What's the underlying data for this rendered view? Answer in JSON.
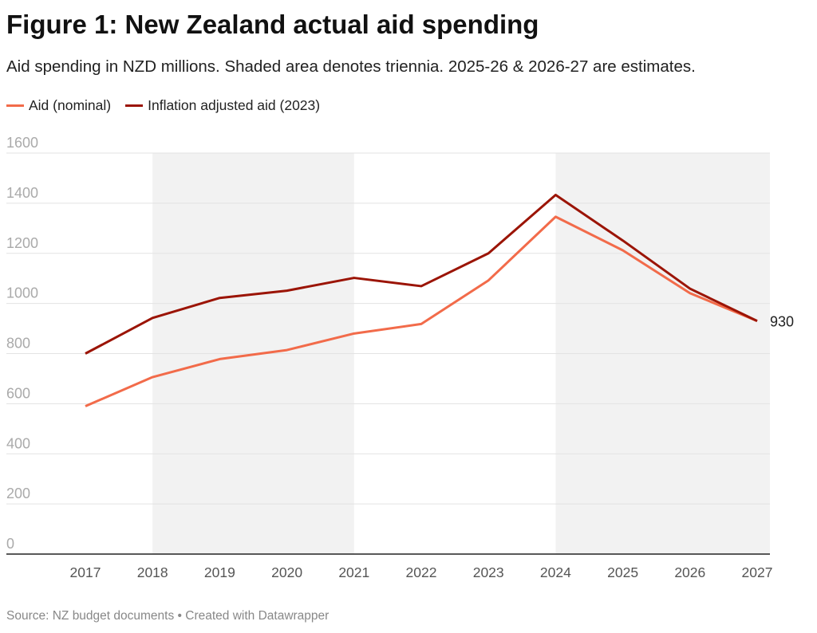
{
  "title": "Figure 1: New Zealand actual aid spending",
  "subtitle": "Aid spending in NZD millions. Shaded area denotes triennia. 2025-26 & 2026-27 are estimates.",
  "source": "Source: NZ budget documents • Created with Datawrapper",
  "chart_data": {
    "type": "line",
    "title": "Figure 1: New Zealand actual aid spending",
    "x": [
      2017,
      2018,
      2019,
      2020,
      2021,
      2022,
      2023,
      2024,
      2025,
      2026,
      2027
    ],
    "x_tick_labels": [
      "2017",
      "2018",
      "2019",
      "2020",
      "2021",
      "2022",
      "2023",
      "2024",
      "2025",
      "2026",
      "2027"
    ],
    "y_ticks": [
      "0",
      "200",
      "400",
      "600",
      "800",
      "1000",
      "1200",
      "1400",
      "1600"
    ],
    "ylim": [
      0,
      1600
    ],
    "grid": true,
    "legend_placement": "top-left",
    "shaded_ranges": [
      [
        2018,
        2021
      ],
      [
        2024,
        2027
      ]
    ],
    "shade_color": "#f2f2f2",
    "series": [
      {
        "name": "Aid (nominal)",
        "color": "#f26b4a",
        "values": [
          590,
          706,
          778,
          814,
          880,
          918,
          1092,
          1346,
          1212,
          1041,
          930
        ]
      },
      {
        "name": "Inflation adjusted aid (2023)",
        "color": "#9b1405",
        "values": [
          800,
          942,
          1022,
          1051,
          1102,
          1069,
          1200,
          1433,
          1251,
          1059,
          930
        ]
      }
    ],
    "end_label": "930"
  }
}
